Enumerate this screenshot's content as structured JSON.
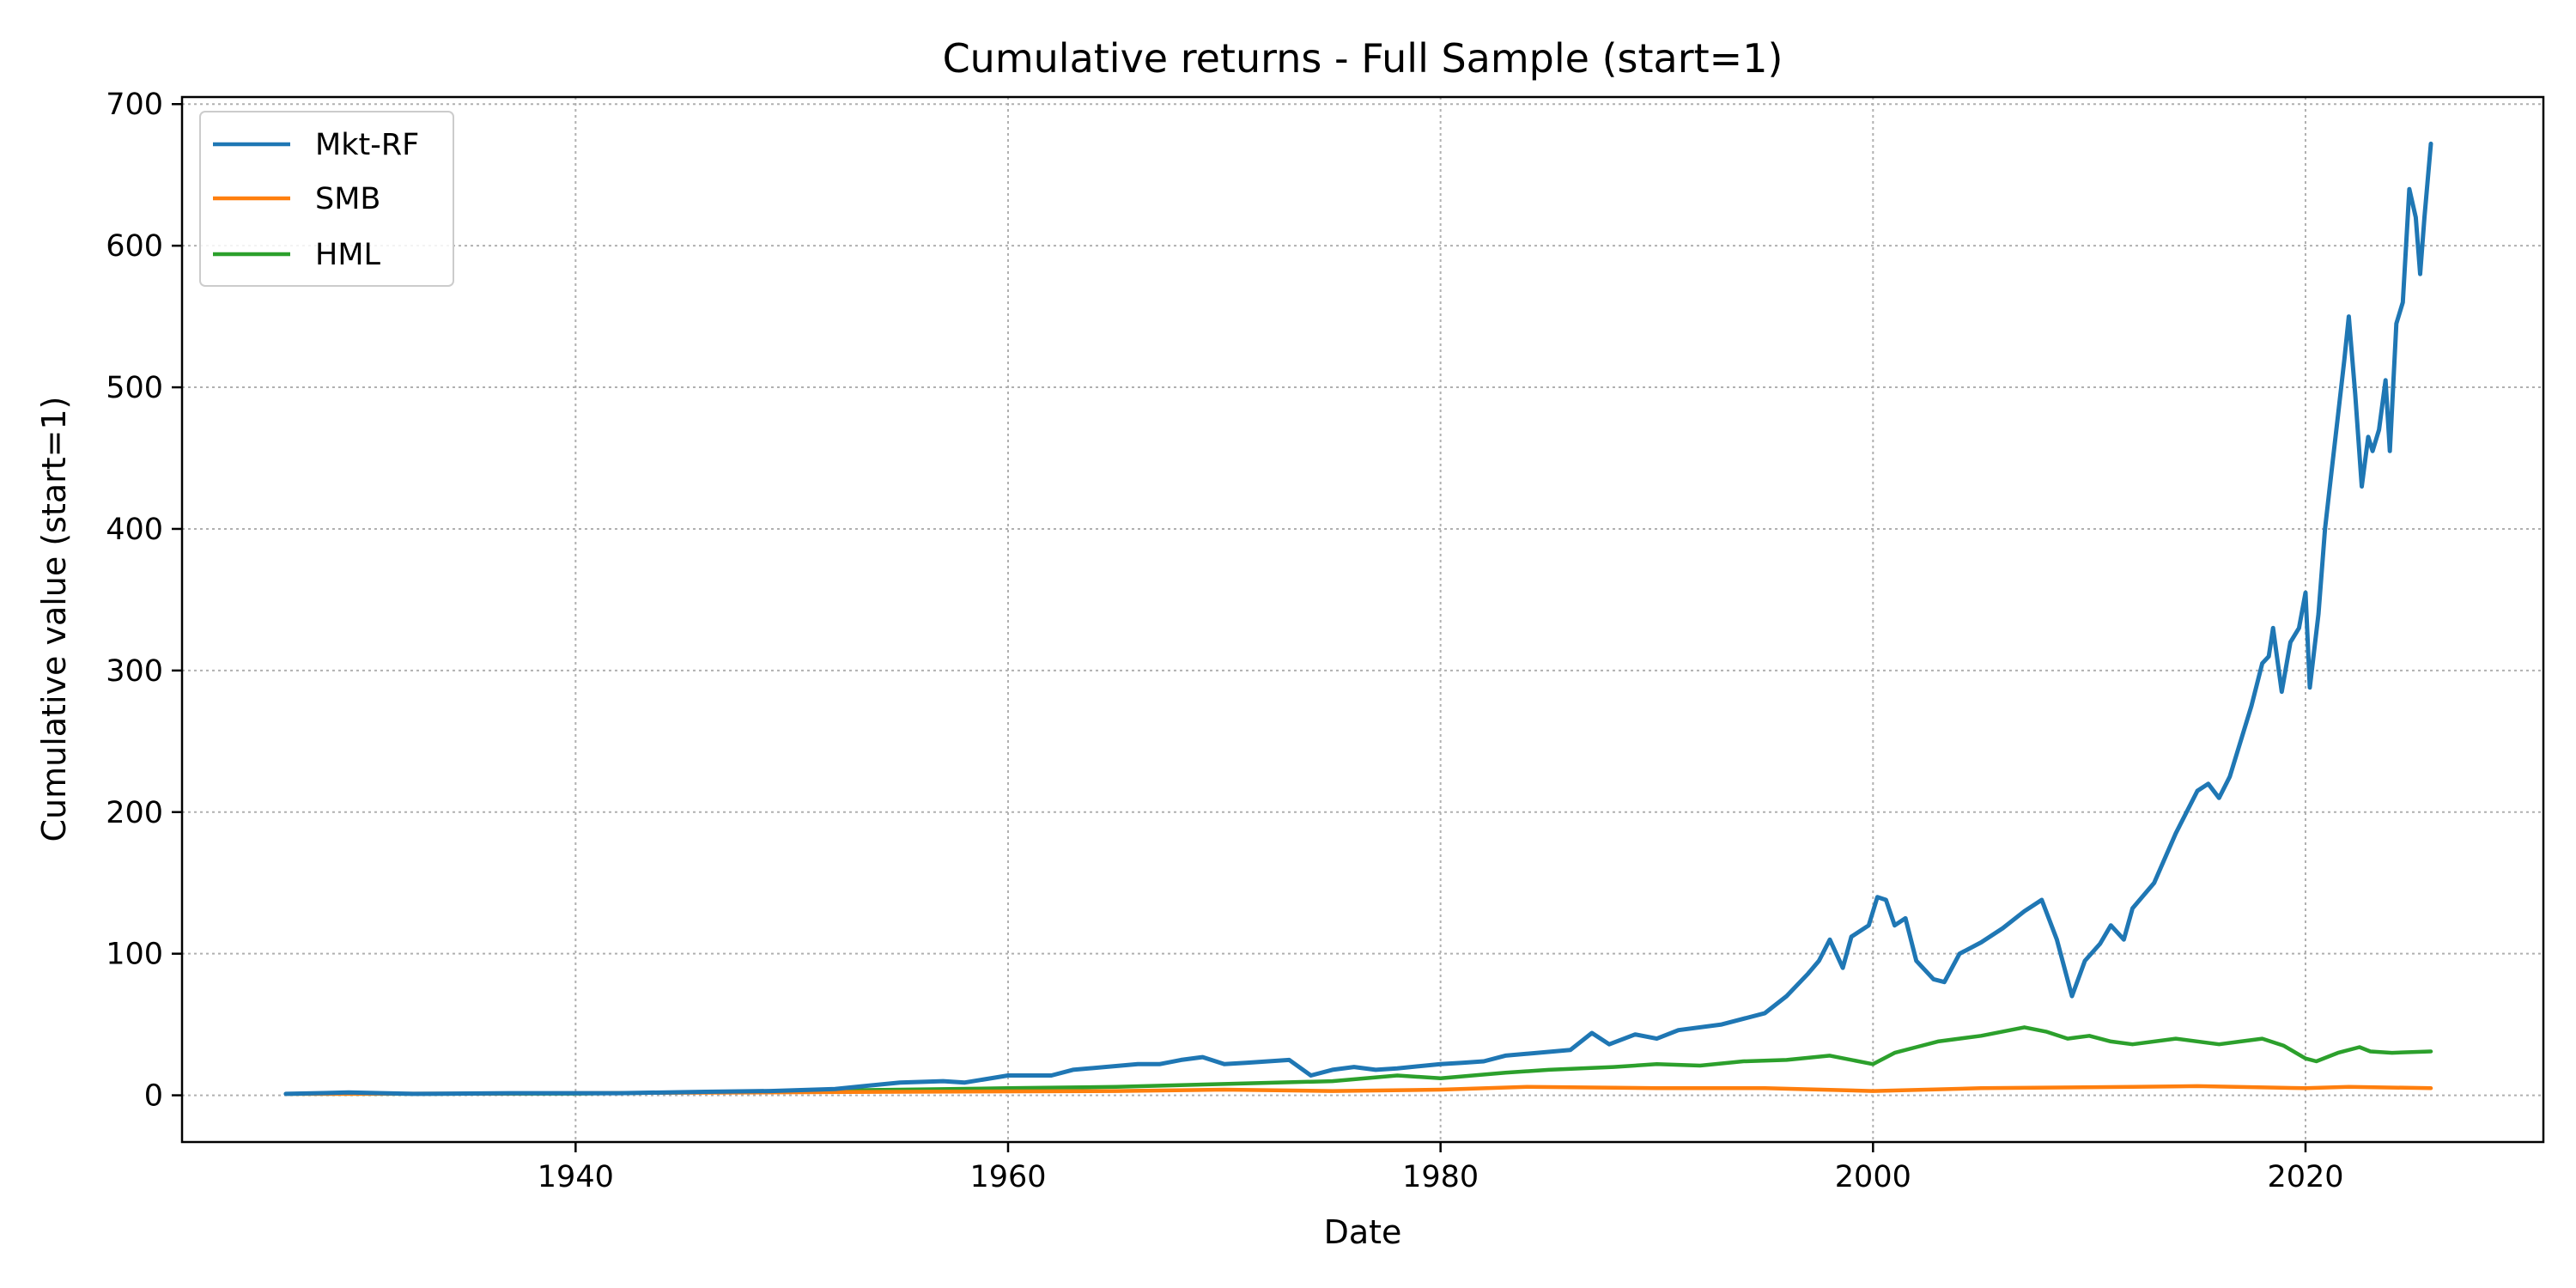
{
  "chart_data": {
    "type": "line",
    "title": "Cumulative returns - Full Sample (start=1)",
    "xlabel": "Date",
    "ylabel": "Cumulative value (start=1)",
    "xlim": [
      1921.8,
      2031.0
    ],
    "ylim": [
      -33,
      705
    ],
    "x_ticks": [
      1940,
      1960,
      1980,
      2000,
      2020
    ],
    "y_ticks": [
      0,
      100,
      200,
      300,
      400,
      500,
      600,
      700
    ],
    "grid": true,
    "legend": {
      "placement": "upper-left",
      "entries": [
        "Mkt-RF",
        "SMB",
        "HML"
      ]
    },
    "series": [
      {
        "name": "Mkt-RF",
        "color": "#1f77b4",
        "points": [
          [
            1926.6,
            1
          ],
          [
            1929.5,
            2
          ],
          [
            1932.5,
            1
          ],
          [
            1937,
            1.5
          ],
          [
            1942,
            1.5
          ],
          [
            1946,
            2.5
          ],
          [
            1949,
            3
          ],
          [
            1952,
            4.5
          ],
          [
            1955,
            9
          ],
          [
            1957,
            10
          ],
          [
            1958,
            9
          ],
          [
            1960,
            14
          ],
          [
            1962,
            14
          ],
          [
            1963,
            18
          ],
          [
            1966,
            22
          ],
          [
            1967,
            22
          ],
          [
            1968,
            25
          ],
          [
            1969,
            27
          ],
          [
            1970,
            22
          ],
          [
            1971,
            23
          ],
          [
            1973,
            25
          ],
          [
            1974,
            14
          ],
          [
            1975,
            18
          ],
          [
            1976,
            20
          ],
          [
            1977,
            18
          ],
          [
            1978,
            19
          ],
          [
            1980,
            22
          ],
          [
            1981,
            23
          ],
          [
            1982,
            24
          ],
          [
            1983,
            28
          ],
          [
            1986,
            32
          ],
          [
            1987,
            44
          ],
          [
            1987.8,
            36
          ],
          [
            1989,
            43
          ],
          [
            1990,
            40
          ],
          [
            1991,
            46
          ],
          [
            1993,
            50
          ],
          [
            1995,
            58
          ],
          [
            1996,
            70
          ],
          [
            1997,
            86
          ],
          [
            1997.5,
            95
          ],
          [
            1998,
            110
          ],
          [
            1998.6,
            90
          ],
          [
            1999,
            112
          ],
          [
            1999.8,
            120
          ],
          [
            2000.2,
            140
          ],
          [
            2000.6,
            138
          ],
          [
            2001,
            120
          ],
          [
            2001.5,
            125
          ],
          [
            2002,
            95
          ],
          [
            2002.8,
            82
          ],
          [
            2003.3,
            80
          ],
          [
            2004,
            100
          ],
          [
            2005,
            108
          ],
          [
            2006,
            118
          ],
          [
            2007,
            130
          ],
          [
            2007.8,
            138
          ],
          [
            2008.5,
            110
          ],
          [
            2009.2,
            70
          ],
          [
            2009.8,
            95
          ],
          [
            2010.5,
            107
          ],
          [
            2011,
            120
          ],
          [
            2011.6,
            110
          ],
          [
            2012,
            132
          ],
          [
            2013,
            150
          ],
          [
            2014,
            185
          ],
          [
            2015,
            215
          ],
          [
            2015.5,
            220
          ],
          [
            2016,
            210
          ],
          [
            2016.5,
            225
          ],
          [
            2017,
            250
          ],
          [
            2017.5,
            275
          ],
          [
            2018,
            305
          ],
          [
            2018.3,
            310
          ],
          [
            2018.5,
            330
          ],
          [
            2018.9,
            285
          ],
          [
            2019.3,
            320
          ],
          [
            2019.7,
            330
          ],
          [
            2020.0,
            355
          ],
          [
            2020.2,
            288
          ],
          [
            2020.6,
            340
          ],
          [
            2020.9,
            400
          ],
          [
            2021.2,
            440
          ],
          [
            2021.5,
            480
          ],
          [
            2021.8,
            520
          ],
          [
            2022.0,
            550
          ],
          [
            2022.3,
            495
          ],
          [
            2022.6,
            430
          ],
          [
            2022.9,
            465
          ],
          [
            2023.1,
            455
          ],
          [
            2023.4,
            470
          ],
          [
            2023.7,
            505
          ],
          [
            2023.9,
            455
          ],
          [
            2024.2,
            545
          ],
          [
            2024.5,
            560
          ],
          [
            2024.8,
            640
          ],
          [
            2025.1,
            620
          ],
          [
            2025.3,
            580
          ],
          [
            2025.5,
            620
          ],
          [
            2025.8,
            672
          ]
        ]
      },
      {
        "name": "SMB",
        "color": "#ff7f0e",
        "points": [
          [
            1926.6,
            1
          ],
          [
            1935,
            1.2
          ],
          [
            1945,
            1.8
          ],
          [
            1955,
            2.5
          ],
          [
            1965,
            3
          ],
          [
            1970,
            4
          ],
          [
            1975,
            3
          ],
          [
            1980,
            4
          ],
          [
            1984,
            6
          ],
          [
            1990,
            5
          ],
          [
            1995,
            5
          ],
          [
            2000,
            3
          ],
          [
            2005,
            5
          ],
          [
            2012,
            6
          ],
          [
            2015,
            6.5
          ],
          [
            2020,
            5
          ],
          [
            2022,
            6
          ],
          [
            2025.8,
            5
          ]
        ]
      },
      {
        "name": "HML",
        "color": "#2ca02c",
        "points": [
          [
            1926.6,
            1
          ],
          [
            1933,
            1
          ],
          [
            1940,
            1.2
          ],
          [
            1945,
            2
          ],
          [
            1950,
            3
          ],
          [
            1955,
            4
          ],
          [
            1960,
            5
          ],
          [
            1965,
            6
          ],
          [
            1970,
            8
          ],
          [
            1975,
            10
          ],
          [
            1978,
            14
          ],
          [
            1980,
            12
          ],
          [
            1983,
            16
          ],
          [
            1985,
            18
          ],
          [
            1988,
            20
          ],
          [
            1990,
            22
          ],
          [
            1992,
            21
          ],
          [
            1994,
            24
          ],
          [
            1996,
            25
          ],
          [
            1998,
            28
          ],
          [
            2000,
            22
          ],
          [
            2001,
            30
          ],
          [
            2002,
            34
          ],
          [
            2003,
            38
          ],
          [
            2005,
            42
          ],
          [
            2007,
            48
          ],
          [
            2008,
            45
          ],
          [
            2009,
            40
          ],
          [
            2010,
            42
          ],
          [
            2011,
            38
          ],
          [
            2012,
            36
          ],
          [
            2014,
            40
          ],
          [
            2016,
            36
          ],
          [
            2017,
            38
          ],
          [
            2018,
            40
          ],
          [
            2019,
            35
          ],
          [
            2020,
            26
          ],
          [
            2020.5,
            24
          ],
          [
            2021.5,
            30
          ],
          [
            2022.5,
            34
          ],
          [
            2023,
            31
          ],
          [
            2024,
            30
          ],
          [
            2025.8,
            31
          ]
        ]
      }
    ]
  }
}
